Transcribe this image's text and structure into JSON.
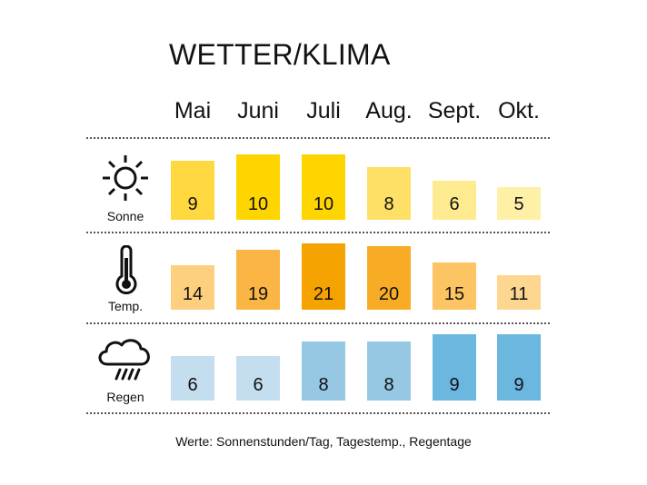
{
  "title": "WETTER/KLIMA",
  "footnote": "Werte: Sonnenstunden/Tag, Tagestemp., Regentage",
  "icons": {
    "sonne": "sun-icon",
    "temp": "thermometer-icon",
    "regen": "rain-cloud-icon"
  },
  "chart_data": {
    "type": "bar",
    "title": "WETTER/KLIMA",
    "categories": [
      "Mai",
      "Juni",
      "Juli",
      "Aug.",
      "Sept.",
      "Okt."
    ],
    "series": [
      {
        "key": "sonne",
        "name": "Sonne",
        "icon": "sun-icon",
        "values": [
          9,
          10,
          10,
          8,
          6,
          5
        ],
        "colors": [
          "#FFD83F",
          "#FFD500",
          "#FFD500",
          "#FFE066",
          "#FFEB8F",
          "#FFF0A8"
        ]
      },
      {
        "key": "temp",
        "name": "Temp.",
        "icon": "thermometer-icon",
        "values": [
          14,
          19,
          21,
          20,
          15,
          11
        ],
        "colors": [
          "#FDD080",
          "#FBB544",
          "#F5A300",
          "#F8AC25",
          "#FCC463",
          "#FDD690"
        ]
      },
      {
        "key": "regen",
        "name": "Regen",
        "icon": "rain-cloud-icon",
        "values": [
          6,
          6,
          8,
          8,
          9,
          9
        ],
        "colors": [
          "#C4DDEF",
          "#C4DDEF",
          "#96C8E4",
          "#96C8E4",
          "#6CB7E0",
          "#6CB7E0"
        ]
      }
    ],
    "note": "Werte: Sonnenstunden/Tag, Tagestemp., Regentage"
  }
}
